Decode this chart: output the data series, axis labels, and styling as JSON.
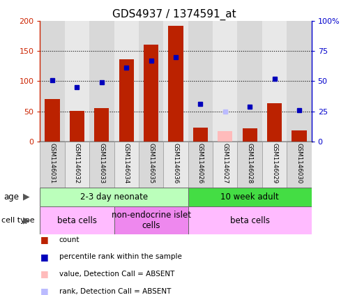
{
  "title": "GDS4937 / 1374591_at",
  "samples": [
    "GSM1146031",
    "GSM1146032",
    "GSM1146033",
    "GSM1146034",
    "GSM1146035",
    "GSM1146036",
    "GSM1146026",
    "GSM1146027",
    "GSM1146028",
    "GSM1146029",
    "GSM1146030"
  ],
  "count_values": [
    70,
    51,
    55,
    136,
    160,
    192,
    23,
    0,
    22,
    63,
    18
  ],
  "count_absent": [
    false,
    false,
    false,
    false,
    false,
    false,
    false,
    true,
    false,
    false,
    false
  ],
  "absent_count_values": [
    0,
    0,
    0,
    0,
    0,
    0,
    0,
    17,
    0,
    0,
    0
  ],
  "rank_values": [
    51,
    45,
    49,
    61,
    67,
    70,
    31,
    0,
    29,
    52,
    26
  ],
  "rank_absent": [
    false,
    false,
    false,
    false,
    false,
    false,
    false,
    true,
    false,
    false,
    false
  ],
  "absent_rank_values": [
    0,
    0,
    0,
    0,
    0,
    0,
    0,
    25,
    0,
    0,
    0
  ],
  "ylim_left": [
    0,
    200
  ],
  "ylim_right": [
    0,
    100
  ],
  "yticks_left": [
    0,
    50,
    100,
    150,
    200
  ],
  "yticks_right": [
    0,
    25,
    50,
    75,
    100
  ],
  "ytick_labels_left": [
    "0",
    "50",
    "100",
    "150",
    "200"
  ],
  "ytick_labels_right": [
    "0",
    "25",
    "50",
    "75",
    "100%"
  ],
  "bar_color": "#bb2200",
  "bar_absent_color": "#ffbbbb",
  "dot_color": "#0000bb",
  "dot_absent_color": "#bbbbff",
  "bar_width": 0.6,
  "age_groups": [
    {
      "label": "2-3 day neonate",
      "start": 0,
      "end": 6,
      "color": "#bbffbb"
    },
    {
      "label": "10 week adult",
      "start": 6,
      "end": 11,
      "color": "#44dd44"
    }
  ],
  "cell_groups": [
    {
      "label": "beta cells",
      "start": 0,
      "end": 3,
      "color": "#ffbbff"
    },
    {
      "label": "non-endocrine islet\ncells",
      "start": 3,
      "end": 6,
      "color": "#ee88ee"
    },
    {
      "label": "beta cells",
      "start": 6,
      "end": 11,
      "color": "#ffbbff"
    }
  ],
  "legend_items": [
    {
      "label": "count",
      "color": "#bb2200"
    },
    {
      "label": "percentile rank within the sample",
      "color": "#0000bb"
    },
    {
      "label": "value, Detection Call = ABSENT",
      "color": "#ffbbbb"
    },
    {
      "label": "rank, Detection Call = ABSENT",
      "color": "#bbbbff"
    }
  ],
  "col_colors": [
    "#d8d8d8",
    "#e8e8e8",
    "#d8d8d8",
    "#e8e8e8",
    "#d8d8d8",
    "#e8e8e8",
    "#d8d8d8",
    "#e8e8e8",
    "#d8d8d8",
    "#e8e8e8",
    "#d8d8d8"
  ],
  "left_axis_color": "#cc2200",
  "right_axis_color": "#0000cc"
}
